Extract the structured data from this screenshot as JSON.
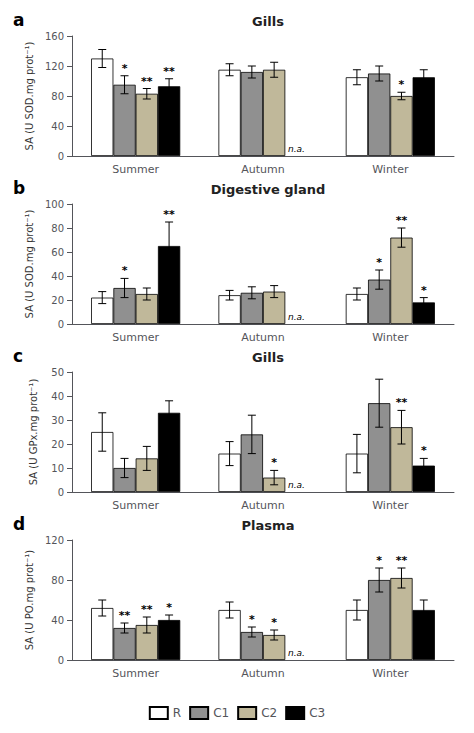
{
  "chart_data": [
    {
      "type": "bar",
      "panel_label": "a",
      "title": "Gills",
      "ylabel": "SA (U SOD.mg prot⁻¹)",
      "categories": [
        "Summer",
        "Autumn",
        "Winter"
      ],
      "series": [
        {
          "name": "R",
          "color": "#ffffff",
          "values": [
            130,
            115,
            105
          ],
          "errors": [
            12,
            8,
            10
          ]
        },
        {
          "name": "C1",
          "color": "#909090",
          "values": [
            95,
            112,
            110
          ],
          "errors": [
            12,
            8,
            10
          ]
        },
        {
          "name": "C2",
          "color": "#c0b89a",
          "values": [
            83,
            115,
            80
          ],
          "errors": [
            7,
            10,
            5
          ]
        },
        {
          "name": "C3",
          "color": "#000000",
          "values": [
            93,
            null,
            105
          ],
          "errors": [
            10,
            null,
            10
          ]
        }
      ],
      "annotations": [
        {
          "category": "Summer",
          "series": "C1",
          "text": "*"
        },
        {
          "category": "Summer",
          "series": "C2",
          "text": "**"
        },
        {
          "category": "Summer",
          "series": "C3",
          "text": "**"
        },
        {
          "category": "Winter",
          "series": "C2",
          "text": "*"
        },
        {
          "category": "Autumn",
          "series": "C3",
          "text": "n.a."
        }
      ],
      "ylim": [
        0,
        160
      ],
      "yticks": [
        0,
        40,
        80,
        120,
        160
      ],
      "grid": false
    },
    {
      "type": "bar",
      "panel_label": "b",
      "title": "Digestive gland",
      "ylabel": "SA (U SOD.mg prot⁻¹)",
      "categories": [
        "Summer",
        "Autumn",
        "Winter"
      ],
      "series": [
        {
          "name": "R",
          "color": "#ffffff",
          "values": [
            22,
            24,
            25
          ],
          "errors": [
            5,
            4,
            5
          ]
        },
        {
          "name": "C1",
          "color": "#909090",
          "values": [
            30,
            26,
            37
          ],
          "errors": [
            8,
            5,
            8
          ]
        },
        {
          "name": "C2",
          "color": "#c0b89a",
          "values": [
            25,
            27,
            72
          ],
          "errors": [
            5,
            5,
            8
          ]
        },
        {
          "name": "C3",
          "color": "#000000",
          "values": [
            65,
            null,
            18
          ],
          "errors": [
            20,
            null,
            4
          ]
        }
      ],
      "annotations": [
        {
          "category": "Summer",
          "series": "C1",
          "text": "*"
        },
        {
          "category": "Summer",
          "series": "C3",
          "text": "**"
        },
        {
          "category": "Winter",
          "series": "C1",
          "text": "*"
        },
        {
          "category": "Winter",
          "series": "C2",
          "text": "**"
        },
        {
          "category": "Winter",
          "series": "C3",
          "text": "*"
        },
        {
          "category": "Autumn",
          "series": "C3",
          "text": "n.a."
        }
      ],
      "ylim": [
        0,
        100
      ],
      "yticks": [
        0,
        20,
        40,
        60,
        80,
        100
      ],
      "grid": false
    },
    {
      "type": "bar",
      "panel_label": "c",
      "title": "Gills",
      "ylabel": "SA (U GPx.mg prot⁻¹)",
      "categories": [
        "Summer",
        "Autumn",
        "Winter"
      ],
      "series": [
        {
          "name": "R",
          "color": "#ffffff",
          "values": [
            25,
            16,
            16
          ],
          "errors": [
            8,
            5,
            8
          ]
        },
        {
          "name": "C1",
          "color": "#909090",
          "values": [
            10,
            24,
            37
          ],
          "errors": [
            4,
            8,
            10
          ]
        },
        {
          "name": "C2",
          "color": "#c0b89a",
          "values": [
            14,
            6,
            27
          ],
          "errors": [
            5,
            3,
            7
          ]
        },
        {
          "name": "C3",
          "color": "#000000",
          "values": [
            33,
            null,
            11
          ],
          "errors": [
            5,
            null,
            3
          ]
        }
      ],
      "annotations": [
        {
          "category": "Autumn",
          "series": "C2",
          "text": "*"
        },
        {
          "category": "Winter",
          "series": "C2",
          "text": "**"
        },
        {
          "category": "Winter",
          "series": "C3",
          "text": "*"
        },
        {
          "category": "Autumn",
          "series": "C3",
          "text": "n.a."
        }
      ],
      "ylim": [
        0,
        50
      ],
      "yticks": [
        0,
        10,
        20,
        30,
        40,
        50
      ],
      "grid": false
    },
    {
      "type": "bar",
      "panel_label": "d",
      "title": "Plasma",
      "ylabel": "SA (U PO.mg prot⁻¹)",
      "categories": [
        "Summer",
        "Autumn",
        "Winter"
      ],
      "series": [
        {
          "name": "R",
          "color": "#ffffff",
          "values": [
            52,
            50,
            50
          ],
          "errors": [
            8,
            8,
            10
          ]
        },
        {
          "name": "C1",
          "color": "#909090",
          "values": [
            32,
            28,
            80
          ],
          "errors": [
            5,
            5,
            12
          ]
        },
        {
          "name": "C2",
          "color": "#c0b89a",
          "values": [
            35,
            25,
            82
          ],
          "errors": [
            8,
            5,
            10
          ]
        },
        {
          "name": "C3",
          "color": "#000000",
          "values": [
            40,
            null,
            50
          ],
          "errors": [
            5,
            null,
            10
          ]
        }
      ],
      "annotations": [
        {
          "category": "Summer",
          "series": "C1",
          "text": "**"
        },
        {
          "category": "Summer",
          "series": "C2",
          "text": "**"
        },
        {
          "category": "Summer",
          "series": "C3",
          "text": "*"
        },
        {
          "category": "Autumn",
          "series": "C1",
          "text": "*"
        },
        {
          "category": "Autumn",
          "series": "C2",
          "text": "*"
        },
        {
          "category": "Winter",
          "series": "C1",
          "text": "*"
        },
        {
          "category": "Winter",
          "series": "C2",
          "text": "**"
        },
        {
          "category": "Autumn",
          "series": "C3",
          "text": "n.a."
        }
      ],
      "ylim": [
        0,
        120
      ],
      "yticks": [
        0,
        40,
        80,
        120
      ],
      "grid": false,
      "legend": "bottom"
    }
  ]
}
